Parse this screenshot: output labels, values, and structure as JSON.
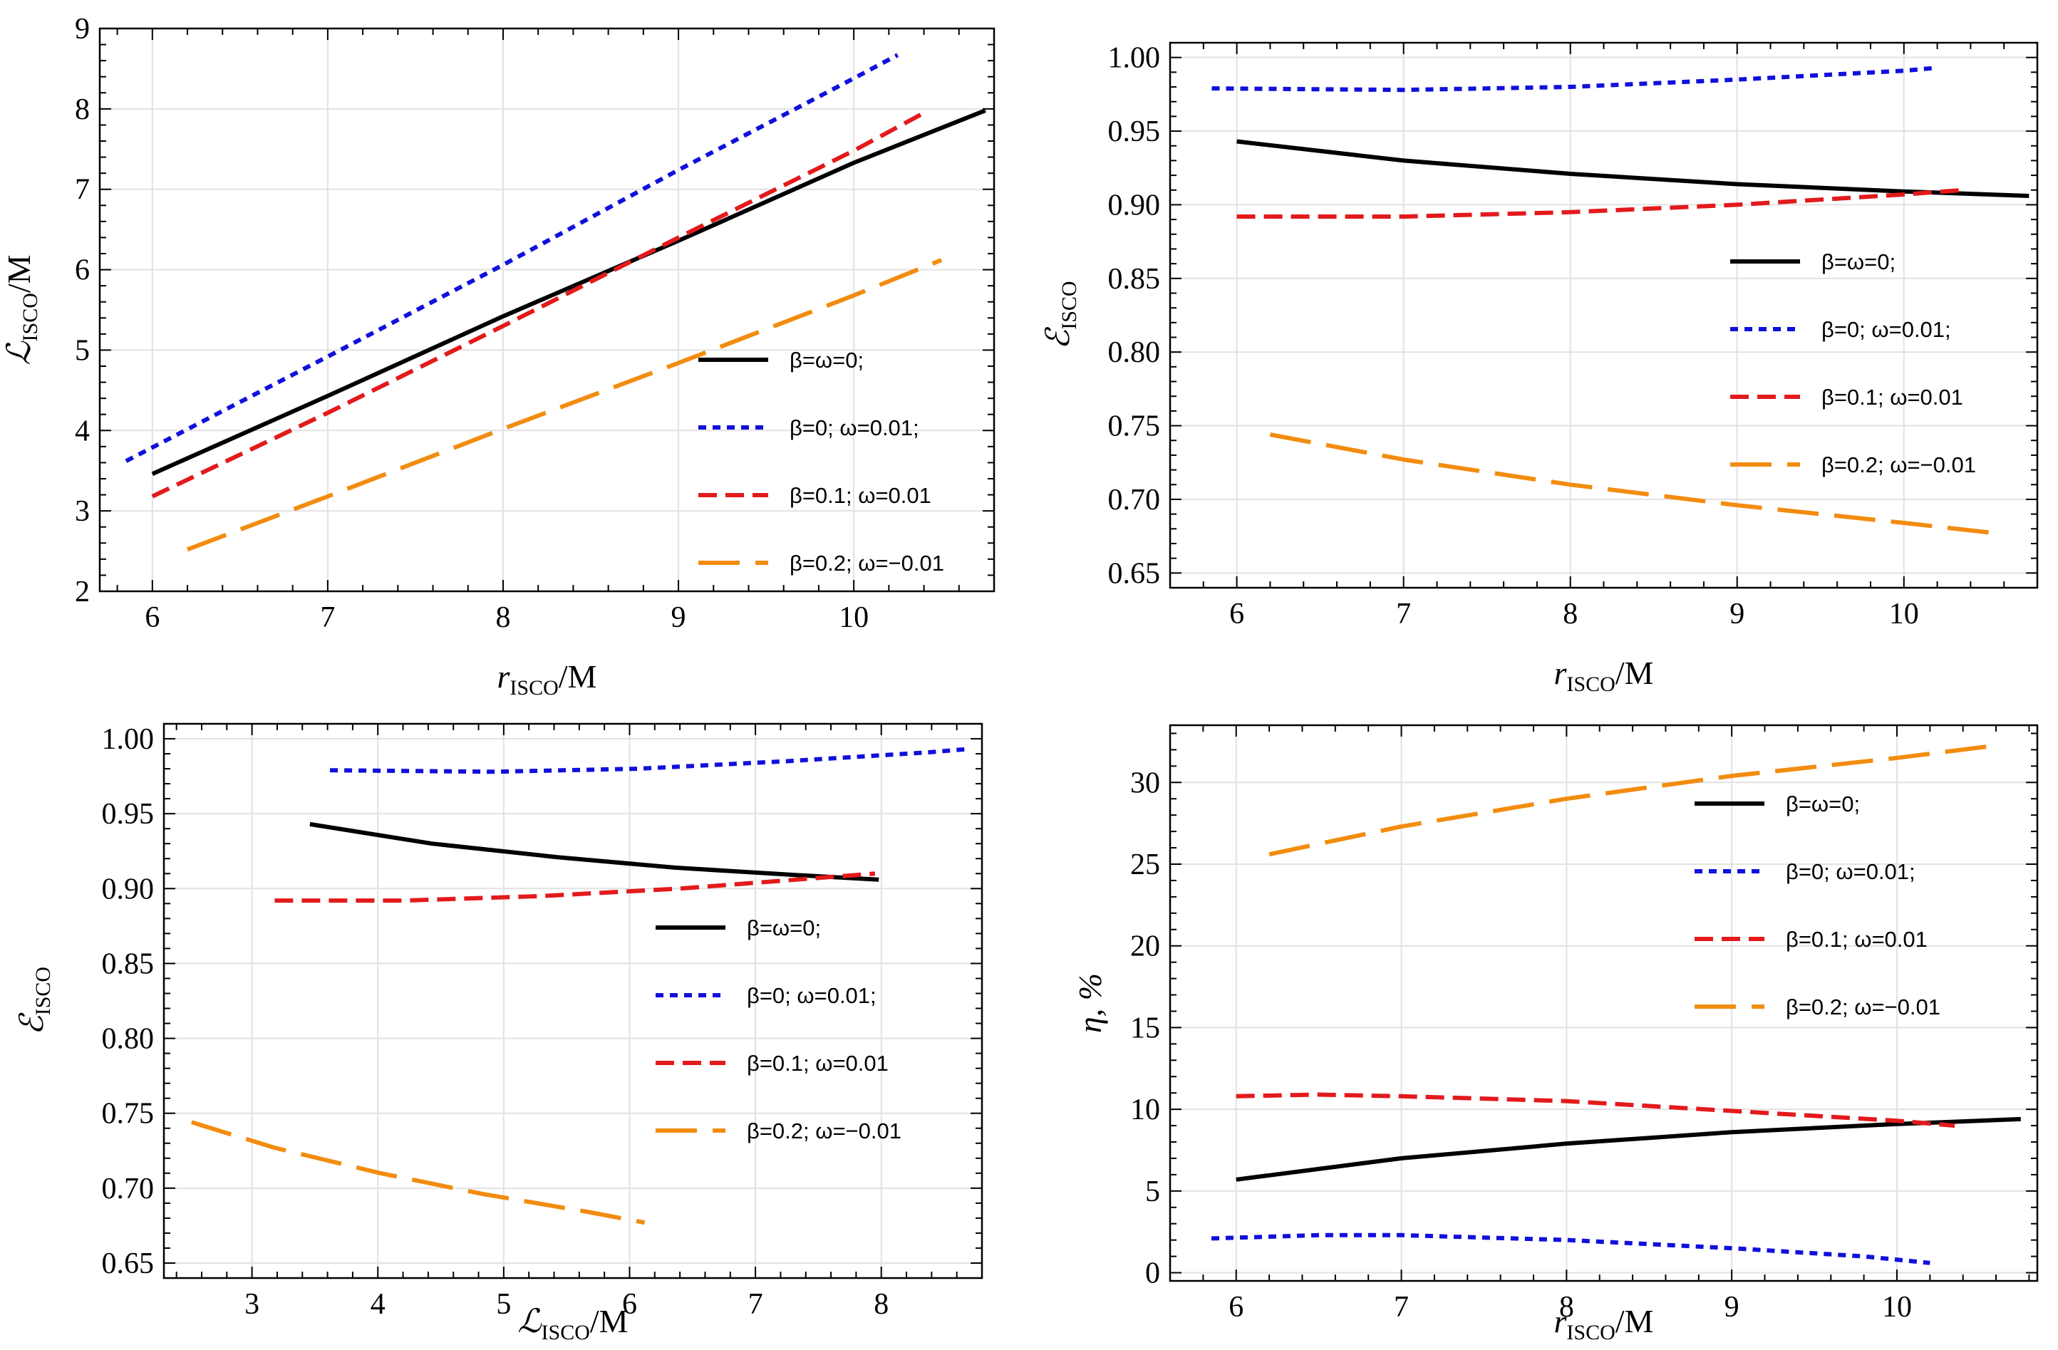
{
  "chart_data": [
    {
      "type": "line",
      "xlabel_main": "r",
      "xlabel_sub": "ISCO",
      "xlabel_suffix": "/M",
      "ylabel_main": "ℒ",
      "ylabel_sub": "ISCO",
      "ylabel_suffix": "/M",
      "xlim": [
        5.7,
        10.8
      ],
      "ylim": [
        2,
        9
      ],
      "xticks": [
        6,
        7,
        8,
        9,
        10
      ],
      "yticks": [
        2,
        3,
        4,
        5,
        6,
        7,
        8,
        9
      ],
      "ytick_decimals": 0,
      "grid": true,
      "legend_position": "bottom-right",
      "series": [
        {
          "name": "β=ω=0;",
          "style": "solid",
          "color": "#000000",
          "x": [
            6.0,
            7.0,
            8.0,
            9.0,
            10.0,
            10.75
          ],
          "y": [
            3.46,
            4.43,
            5.42,
            6.36,
            7.33,
            7.98
          ]
        },
        {
          "name": "β=0; ω=0.01;",
          "style": "dotted",
          "color": "#1010dd",
          "x": [
            5.85,
            7.0,
            8.0,
            9.0,
            10.0,
            10.25
          ],
          "y": [
            3.62,
            4.92,
            6.06,
            7.24,
            8.38,
            8.67
          ]
        },
        {
          "name": "β=0.1; ω=0.01",
          "style": "dashed",
          "color": "#e31a1c",
          "x": [
            6.0,
            7.0,
            8.0,
            9.0,
            10.0,
            10.4
          ],
          "y": [
            3.18,
            4.22,
            5.3,
            6.4,
            7.48,
            7.95
          ]
        },
        {
          "name": "β=0.2; ω=−0.01",
          "style": "longdash",
          "color": "#f28c0f",
          "x": [
            6.2,
            7.0,
            8.0,
            9.0,
            10.0,
            10.5
          ],
          "y": [
            2.52,
            3.18,
            4.02,
            4.84,
            5.68,
            6.12
          ]
        }
      ]
    },
    {
      "type": "line",
      "xlabel_main": "r",
      "xlabel_sub": "ISCO",
      "xlabel_suffix": "/M",
      "ylabel_main": "ℰ",
      "ylabel_sub": "ISCO",
      "ylabel_suffix": "",
      "xlim": [
        5.6,
        10.8
      ],
      "ylim": [
        0.64,
        1.01
      ],
      "xticks": [
        6,
        7,
        8,
        9,
        10
      ],
      "yticks": [
        0.65,
        0.7,
        0.75,
        0.8,
        0.85,
        0.9,
        0.95,
        1.0
      ],
      "ytick_decimals": 2,
      "grid": true,
      "legend_position": "right",
      "series": [
        {
          "name": "β=ω=0;",
          "style": "solid",
          "color": "#000000",
          "x": [
            6.0,
            7.0,
            8.0,
            9.0,
            10.0,
            10.75
          ],
          "y": [
            0.943,
            0.93,
            0.921,
            0.914,
            0.909,
            0.906
          ]
        },
        {
          "name": "β=0; ω=0.01;",
          "style": "dotted",
          "color": "#1010dd",
          "x": [
            5.85,
            7.0,
            8.0,
            9.0,
            10.0,
            10.2
          ],
          "y": [
            0.979,
            0.978,
            0.98,
            0.985,
            0.991,
            0.993
          ]
        },
        {
          "name": "β=0.1; ω=0.01",
          "style": "dashed",
          "color": "#e31a1c",
          "x": [
            6.0,
            7.0,
            8.0,
            9.0,
            10.0,
            10.35
          ],
          "y": [
            0.892,
            0.892,
            0.895,
            0.9,
            0.907,
            0.91
          ]
        },
        {
          "name": "β=0.2; ω=−0.01",
          "style": "longdash",
          "color": "#f28c0f",
          "x": [
            6.2,
            7.0,
            8.0,
            9.0,
            10.0,
            10.55
          ],
          "y": [
            0.744,
            0.727,
            0.71,
            0.696,
            0.684,
            0.677
          ]
        }
      ]
    },
    {
      "type": "line",
      "xlabel_main": "ℒ",
      "xlabel_sub": "ISCO",
      "xlabel_suffix": "/M",
      "ylabel_main": "ℰ",
      "ylabel_sub": "ISCO",
      "ylabel_suffix": "",
      "xlim": [
        2.3,
        8.8
      ],
      "ylim": [
        0.64,
        1.01
      ],
      "xticks": [
        3,
        4,
        5,
        6,
        7,
        8
      ],
      "yticks": [
        0.65,
        0.7,
        0.75,
        0.8,
        0.85,
        0.9,
        0.95,
        1.0
      ],
      "ytick_decimals": 2,
      "grid": true,
      "legend_position": "right",
      "series": [
        {
          "name": "β=ω=0;",
          "style": "solid",
          "color": "#000000",
          "x": [
            3.46,
            4.43,
            5.42,
            6.36,
            7.33,
            7.98
          ],
          "y": [
            0.943,
            0.93,
            0.921,
            0.914,
            0.909,
            0.906
          ]
        },
        {
          "name": "β=0; ω=0.01;",
          "style": "dotted",
          "color": "#1010dd",
          "x": [
            3.62,
            4.92,
            6.06,
            7.24,
            8.38,
            8.67
          ],
          "y": [
            0.979,
            0.978,
            0.98,
            0.985,
            0.991,
            0.993
          ]
        },
        {
          "name": "β=0.1; ω=0.01",
          "style": "dashed",
          "color": "#e31a1c",
          "x": [
            3.18,
            4.22,
            5.3,
            6.4,
            7.48,
            7.95
          ],
          "y": [
            0.892,
            0.892,
            0.895,
            0.9,
            0.907,
            0.91
          ]
        },
        {
          "name": "β=0.2; ω=−0.01",
          "style": "longdash",
          "color": "#f28c0f",
          "x": [
            2.52,
            3.18,
            4.02,
            4.84,
            5.68,
            6.12
          ],
          "y": [
            0.744,
            0.727,
            0.71,
            0.696,
            0.684,
            0.677
          ]
        }
      ]
    },
    {
      "type": "line",
      "xlabel_main": "r",
      "xlabel_sub": "ISCO",
      "xlabel_suffix": "/M",
      "ylabel_main": "η, %",
      "ylabel_sub": "",
      "ylabel_suffix": "",
      "xlim": [
        5.6,
        10.85
      ],
      "ylim": [
        -0.5,
        33.5
      ],
      "xticks": [
        6,
        7,
        8,
        9,
        10
      ],
      "yticks": [
        0,
        5,
        10,
        15,
        20,
        25,
        30
      ],
      "ytick_decimals": 0,
      "grid": true,
      "legend_position": "top-right",
      "series": [
        {
          "name": "β=ω=0;",
          "style": "solid",
          "color": "#000000",
          "x": [
            6.0,
            7.0,
            8.0,
            9.0,
            10.0,
            10.75
          ],
          "y": [
            5.7,
            7.0,
            7.9,
            8.6,
            9.1,
            9.4
          ]
        },
        {
          "name": "β=0; ω=0.01;",
          "style": "dotted",
          "color": "#1010dd",
          "x": [
            5.85,
            6.5,
            7.0,
            8.0,
            9.0,
            9.8,
            10.2
          ],
          "y": [
            2.1,
            2.3,
            2.3,
            2.0,
            1.5,
            1.0,
            0.6
          ]
        },
        {
          "name": "β=0.1; ω=0.01",
          "style": "dashed",
          "color": "#e31a1c",
          "x": [
            6.0,
            6.5,
            7.0,
            8.0,
            9.0,
            10.0,
            10.35
          ],
          "y": [
            10.8,
            10.9,
            10.8,
            10.5,
            9.9,
            9.3,
            9.0
          ]
        },
        {
          "name": "β=0.2; ω=−0.01",
          "style": "longdash",
          "color": "#f28c0f",
          "x": [
            6.2,
            7.0,
            8.0,
            9.0,
            10.0,
            10.55
          ],
          "y": [
            25.6,
            27.3,
            29.0,
            30.4,
            31.5,
            32.2
          ]
        }
      ]
    }
  ]
}
